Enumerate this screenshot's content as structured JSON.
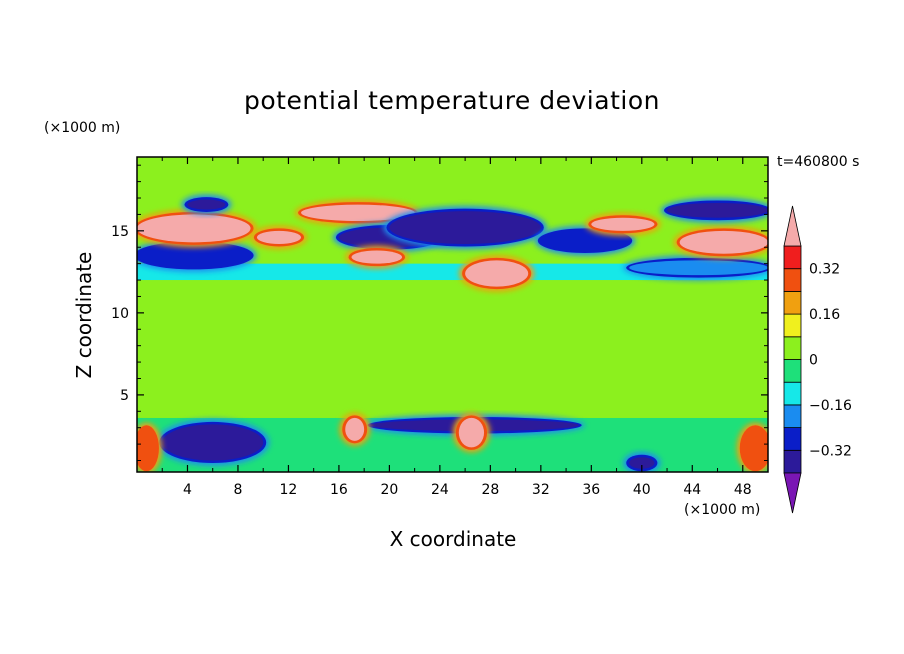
{
  "chart_data": {
    "type": "heatmap",
    "title": "potential temperature deviation",
    "xlabel": "X coordinate",
    "ylabel": "Z coordinate",
    "x_multiplier": "(×1000 m)",
    "y_multiplier": "(×1000 m)",
    "time_label": "t=460800 s",
    "xlim": [
      0,
      50
    ],
    "ylim": [
      0.3,
      19.5
    ],
    "x_ticks": [
      "4",
      "8",
      "12",
      "16",
      "20",
      "24",
      "28",
      "32",
      "36",
      "40",
      "44",
      "48"
    ],
    "y_ticks": [
      "5",
      "10",
      "15"
    ],
    "colorbar": {
      "tick_labels": [
        "0.32",
        "0.16",
        "0",
        "−0.16",
        "−0.32"
      ],
      "levels": [
        -0.4,
        -0.32,
        -0.24,
        -0.16,
        -0.08,
        0,
        0.08,
        0.16,
        0.24,
        0.32,
        0.4
      ],
      "colors": [
        "#7a16b4",
        "#2c1a9a",
        "#0a1ec8",
        "#1a8cf0",
        "#16e8e8",
        "#1ee07a",
        "#8cf01e",
        "#f0f01e",
        "#f0a010",
        "#f05010",
        "#f01e1e",
        "#f5aaaa"
      ]
    },
    "bands": [
      {
        "zmin": 0.3,
        "zmax": 3.6,
        "value": -0.05
      },
      {
        "zmin": 3.6,
        "zmax": 12.0,
        "value": 0.04
      },
      {
        "zmin": 12.0,
        "zmax": 13.0,
        "value": -0.1
      },
      {
        "zmin": 17.5,
        "zmax": 19.5,
        "value": 0.04
      }
    ],
    "features": [
      {
        "x0": 2,
        "x1": 10,
        "z0": 1.0,
        "z1": 3.2,
        "value": -0.36
      },
      {
        "x0": 39,
        "x1": 41,
        "z0": 0.5,
        "z1": 1.2,
        "value": -0.36
      },
      {
        "x0": 0,
        "x1": 1.5,
        "z0": 0.5,
        "z1": 3.0,
        "value": 0.3
      },
      {
        "x0": 48,
        "x1": 50,
        "z0": 0.5,
        "z1": 3.0,
        "value": 0.3
      },
      {
        "x0": 18.5,
        "x1": 35,
        "z0": 2.8,
        "z1": 3.5,
        "value": -0.36
      },
      {
        "x0": 16.5,
        "x1": 18,
        "z0": 2.2,
        "z1": 3.6,
        "value": 0.42
      },
      {
        "x0": 25.5,
        "x1": 27.5,
        "z0": 1.8,
        "z1": 3.6,
        "value": 0.42
      },
      {
        "x0": 0,
        "x1": 9,
        "z0": 12.8,
        "z1": 14.2,
        "value": -0.32
      },
      {
        "x0": 39,
        "x1": 50,
        "z0": 12.3,
        "z1": 13.2,
        "value": -0.2
      },
      {
        "x0": 0,
        "x1": 9,
        "z0": 14.3,
        "z1": 16.0,
        "value": 0.42
      },
      {
        "x0": 9.5,
        "x1": 13,
        "z0": 14.2,
        "z1": 15.0,
        "value": 0.42
      },
      {
        "x0": 13,
        "x1": 22,
        "z0": 15.6,
        "z1": 16.6,
        "value": 0.42
      },
      {
        "x0": 16,
        "x1": 24,
        "z0": 14.0,
        "z1": 15.2,
        "value": -0.38
      },
      {
        "x0": 20,
        "x1": 32,
        "z0": 14.2,
        "z1": 16.2,
        "value": -0.38
      },
      {
        "x0": 32,
        "x1": 39,
        "z0": 13.8,
        "z1": 15.0,
        "value": -0.32
      },
      {
        "x0": 43,
        "x1": 50,
        "z0": 13.6,
        "z1": 15.0,
        "value": 0.42
      },
      {
        "x0": 36,
        "x1": 41,
        "z0": 15.0,
        "z1": 15.8,
        "value": 0.42
      },
      {
        "x0": 4,
        "x1": 7,
        "z0": 16.3,
        "z1": 16.9,
        "value": -0.36
      },
      {
        "x0": 42,
        "x1": 50,
        "z0": 15.8,
        "z1": 16.7,
        "value": -0.38
      },
      {
        "x0": 26,
        "x1": 31,
        "z0": 11.6,
        "z1": 13.2,
        "value": 0.42
      },
      {
        "x0": 17,
        "x1": 21,
        "z0": 13.0,
        "z1": 13.8,
        "value": 0.42
      }
    ]
  }
}
